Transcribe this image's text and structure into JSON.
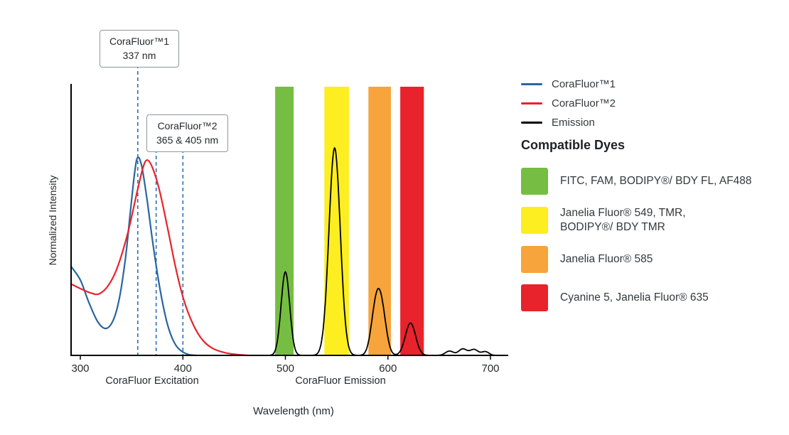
{
  "figure": {
    "callouts": [
      {
        "title": "CoraFluor™1",
        "value": "337 nm"
      },
      {
        "title": "CoraFluor™2",
        "value": "365 & 405 nm"
      }
    ],
    "legend": [
      {
        "label": "CoraFluor™1",
        "color": "#2a65a0"
      },
      {
        "label": "CoraFluor™2",
        "color": "#e8232b"
      },
      {
        "label": "Emission",
        "color": "#000000"
      }
    ],
    "compatible_dyes_title": "Compatible Dyes",
    "dyes": [
      {
        "color": "#76bd43",
        "lines": [
          "FITC, FAM, BODIPY®/ BDY FL, AF488"
        ]
      },
      {
        "color": "#fcee21",
        "lines": [
          "Janelia Fluor® 549, TMR,",
          "BODIPY®/ BDY TMR"
        ]
      },
      {
        "color": "#f6a43b",
        "lines": [
          "Janelia Fluor® 585"
        ]
      },
      {
        "color": "#e8232b",
        "lines": [
          "Cyanine 5, Janelia Fluor® 635"
        ]
      }
    ]
  },
  "chart_data": {
    "type": "line",
    "xlabel": "Wavelength (nm)",
    "ylabel": "Normalized Intensity",
    "x_ticks": [
      300,
      400,
      500,
      600,
      700
    ],
    "xlim": [
      291,
      717
    ],
    "ylim": [
      0,
      1
    ],
    "x_axis_notes": [
      "CoraFluor Excitation",
      "CoraFluor Emission"
    ],
    "dashed_line_color": "#2f6fae",
    "dashed_marker_lines_nm": [
      356,
      374,
      400
    ],
    "bands": [
      {
        "name": "green",
        "color": "#76bd43",
        "from_nm": 490,
        "to_nm": 508
      },
      {
        "name": "yellow",
        "color": "#fcee21",
        "from_nm": 538,
        "to_nm": 562
      },
      {
        "name": "orange",
        "color": "#f6a43b",
        "from_nm": 581,
        "to_nm": 603
      },
      {
        "name": "red",
        "color": "#e8232b",
        "from_nm": 612,
        "to_nm": 635
      }
    ],
    "series": [
      {
        "name": "CoraFluor1-excitation",
        "color": "#2a65a0",
        "points": [
          [
            291,
            0.33
          ],
          [
            300,
            0.28
          ],
          [
            308,
            0.2
          ],
          [
            317,
            0.125
          ],
          [
            325,
            0.1
          ],
          [
            332,
            0.13
          ],
          [
            338,
            0.21
          ],
          [
            344,
            0.36
          ],
          [
            349,
            0.54
          ],
          [
            353,
            0.68
          ],
          [
            356,
            0.735
          ],
          [
            360,
            0.7
          ],
          [
            365,
            0.58
          ],
          [
            371,
            0.41
          ],
          [
            378,
            0.24
          ],
          [
            385,
            0.115
          ],
          [
            392,
            0.045
          ],
          [
            399,
            0.015
          ],
          [
            406,
            0.003
          ],
          [
            414,
            0.0
          ]
        ]
      },
      {
        "name": "CoraFluor2-excitation",
        "color": "#e8232b",
        "points": [
          [
            291,
            0.265
          ],
          [
            300,
            0.248
          ],
          [
            310,
            0.232
          ],
          [
            318,
            0.228
          ],
          [
            327,
            0.258
          ],
          [
            336,
            0.325
          ],
          [
            346,
            0.45
          ],
          [
            355,
            0.6
          ],
          [
            361,
            0.695
          ],
          [
            365,
            0.725
          ],
          [
            370,
            0.7
          ],
          [
            377,
            0.615
          ],
          [
            385,
            0.475
          ],
          [
            393,
            0.325
          ],
          [
            401,
            0.205
          ],
          [
            410,
            0.115
          ],
          [
            419,
            0.058
          ],
          [
            429,
            0.026
          ],
          [
            441,
            0.01
          ],
          [
            453,
            0.003
          ],
          [
            464,
            0.0
          ]
        ]
      }
    ],
    "emission": {
      "name": "Emission",
      "color": "#000000",
      "range_nm": [
        452,
        712
      ],
      "gaussian_peaks": [
        {
          "center_nm": 500,
          "height": 0.31,
          "sigma_nm": 4.2
        },
        {
          "center_nm": 548,
          "height": 0.77,
          "sigma_nm": 5.5
        },
        {
          "center_nm": 588,
          "height": 0.16,
          "sigma_nm": 4.5
        },
        {
          "center_nm": 594,
          "height": 0.15,
          "sigma_nm": 4.5
        },
        {
          "center_nm": 622,
          "height": 0.12,
          "sigma_nm": 5.0
        },
        {
          "center_nm": 660,
          "height": 0.016,
          "sigma_nm": 4.0
        },
        {
          "center_nm": 673,
          "height": 0.024,
          "sigma_nm": 4.0
        },
        {
          "center_nm": 684,
          "height": 0.022,
          "sigma_nm": 4.0
        },
        {
          "center_nm": 695,
          "height": 0.014,
          "sigma_nm": 3.5
        }
      ]
    }
  }
}
